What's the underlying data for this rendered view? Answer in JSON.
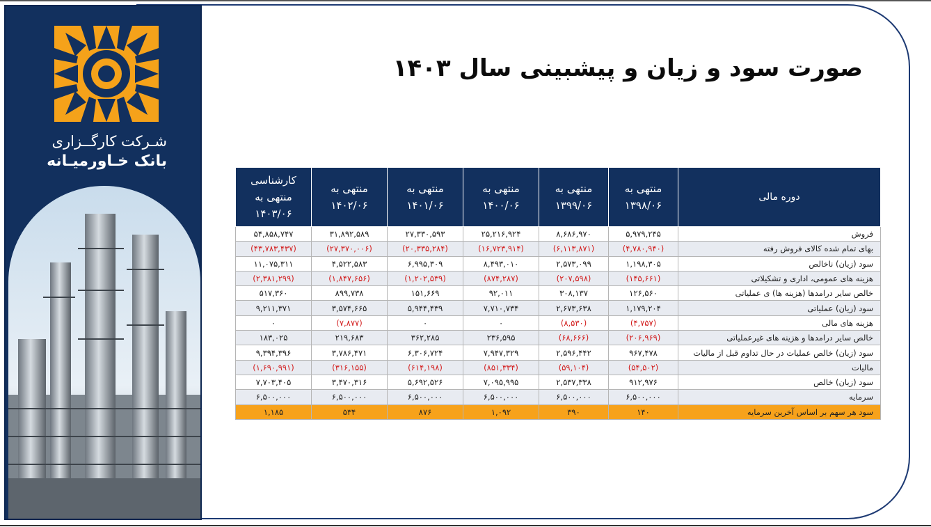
{
  "title": "صورت سود و زیان و پیشبینی سال ۱۴۰۳",
  "company": {
    "line1": "شـرکت کارگــزاری",
    "line2": "بانک خـاورمیـانه"
  },
  "table": {
    "label_header": "دوره مالی",
    "columns": [
      {
        "l1": "منتهی به",
        "l2": "۱۳۹۸/۰۶"
      },
      {
        "l1": "منتهی به",
        "l2": "۱۳۹۹/۰۶"
      },
      {
        "l1": "منتهی به",
        "l2": "۱۴۰۰/۰۶"
      },
      {
        "l1": "منتهی به",
        "l2": "۱۴۰۱/۰۶"
      },
      {
        "l1": "منتهی به",
        "l2": "۱۴۰۲/۰۶"
      },
      {
        "l1": "کارشناسی",
        "l2": "منتهی به",
        "l3": "۱۴۰۳/۰۶"
      }
    ],
    "rows": [
      {
        "label": "فروش",
        "values": [
          "۵,۹۷۹,۲۴۵",
          "۸,۶۸۶,۹۷۰",
          "۲۵,۲۱۶,۹۲۴",
          "۲۷,۳۳۰,۵۹۳",
          "۳۱,۸۹۲,۵۸۹",
          "۵۴,۸۵۸,۷۴۷"
        ],
        "neg": [
          false,
          false,
          false,
          false,
          false,
          false
        ]
      },
      {
        "label": "بهای تمام شده کالای فروش رفته",
        "values": [
          "(۴,۷۸۰,۹۴۰)",
          "(۶,۱۱۳,۸۷۱)",
          "(۱۶,۷۲۳,۹۱۴)",
          "(۲۰,۳۳۵,۲۸۴)",
          "(۲۷,۳۷۰,۰۰۶)",
          "(۴۳,۷۸۳,۴۳۷)"
        ],
        "neg": [
          true,
          true,
          true,
          true,
          true,
          true
        ]
      },
      {
        "label": "سود (زیان) ناخالص",
        "values": [
          "۱,۱۹۸,۳۰۵",
          "۲,۵۷۳,۰۹۹",
          "۸,۴۹۳,۰۱۰",
          "۶,۹۹۵,۳۰۹",
          "۴,۵۲۲,۵۸۳",
          "۱۱,۰۷۵,۳۱۱"
        ],
        "neg": [
          false,
          false,
          false,
          false,
          false,
          false
        ]
      },
      {
        "label": "هزینه های عمومی، اداری و تشکیلاتی",
        "values": [
          "(۱۴۵,۶۶۱)",
          "(۲۰۷,۵۹۸)",
          "(۸۷۴,۲۸۷)",
          "(۱,۲۰۲,۵۳۹)",
          "(۱,۸۴۷,۶۵۶)",
          "(۲,۳۸۱,۲۹۹)"
        ],
        "neg": [
          true,
          true,
          true,
          true,
          true,
          true
        ]
      },
      {
        "label": "خالص سایر درامدها (هزینه ها) ی عملیاتی",
        "values": [
          "۱۲۶,۵۶۰",
          "۳۰۸,۱۳۷",
          "۹۲,۰۱۱",
          "۱۵۱,۶۶۹",
          "۸۹۹,۷۳۸",
          "۵۱۷,۳۶۰"
        ],
        "neg": [
          false,
          false,
          false,
          false,
          false,
          false
        ]
      },
      {
        "label": "سود (زیان) عملیاتی",
        "values": [
          "۱,۱۷۹,۲۰۴",
          "۲,۶۷۳,۶۳۸",
          "۷,۷۱۰,۷۳۴",
          "۵,۹۴۴,۴۳۹",
          "۳,۵۷۴,۶۶۵",
          "۹,۲۱۱,۳۷۱"
        ],
        "neg": [
          false,
          false,
          false,
          false,
          false,
          false
        ]
      },
      {
        "label": "هزینه های مالی",
        "values": [
          "(۴,۷۵۷)",
          "(۸,۵۳۰)",
          "۰",
          "۰",
          "(۷,۸۷۷)",
          "۰"
        ],
        "neg": [
          true,
          true,
          false,
          false,
          true,
          false
        ]
      },
      {
        "label": "خالص سایر درامدها و هزینه های غیرعملیاتی",
        "values": [
          "(۲۰۶,۹۶۹)",
          "(۶۸,۶۶۶)",
          "۲۳۶,۵۹۵",
          "۳۶۲,۲۸۵",
          "۲۱۹,۶۸۳",
          "۱۸۳,۰۲۵"
        ],
        "neg": [
          true,
          true,
          false,
          false,
          false,
          false
        ]
      },
      {
        "label": "سود (زیان) خالص عملیات در حال تداوم قبل از مالیات",
        "values": [
          "۹۶۷,۴۷۸",
          "۲,۵۹۶,۴۴۲",
          "۷,۹۴۷,۳۲۹",
          "۶,۳۰۶,۷۲۴",
          "۳,۷۸۶,۴۷۱",
          "۹,۳۹۴,۳۹۶"
        ],
        "neg": [
          false,
          false,
          false,
          false,
          false,
          false
        ]
      },
      {
        "label": "مالیات",
        "values": [
          "(۵۴,۵۰۲)",
          "(۵۹,۱۰۴)",
          "(۸۵۱,۳۳۴)",
          "(۶۱۴,۱۹۸)",
          "(۳۱۶,۱۵۵)",
          "(۱,۶۹۰,۹۹۱)"
        ],
        "neg": [
          true,
          true,
          true,
          true,
          true,
          true
        ]
      },
      {
        "label": "سود (زیان) خالص",
        "values": [
          "۹۱۲,۹۷۶",
          "۲,۵۳۷,۳۳۸",
          "۷,۰۹۵,۹۹۵",
          "۵,۶۹۲,۵۲۶",
          "۳,۴۷۰,۳۱۶",
          "۷,۷۰۳,۴۰۵"
        ],
        "neg": [
          false,
          false,
          false,
          false,
          false,
          false
        ]
      },
      {
        "label": "سرمایه",
        "values": [
          "۶,۵۰۰,۰۰۰",
          "۶,۵۰۰,۰۰۰",
          "۶,۵۰۰,۰۰۰",
          "۶,۵۰۰,۰۰۰",
          "۶,۵۰۰,۰۰۰",
          "۶,۵۰۰,۰۰۰"
        ],
        "neg": [
          false,
          false,
          false,
          false,
          false,
          false
        ]
      },
      {
        "label": "سود هر سهم بر اساس آخرین سرمایه",
        "values": [
          "۱۴۰",
          "۳۹۰",
          "۱,۰۹۲",
          "۸۷۶",
          "۵۳۴",
          "۱,۱۸۵"
        ],
        "neg": [
          false,
          false,
          false,
          false,
          false,
          false
        ]
      }
    ]
  },
  "colors": {
    "navy": "#12305e",
    "negative": "#d21b1b",
    "highlight": "#f7a21b",
    "logo": "#f5a21a"
  },
  "icons": [
    "sun-logo-icon",
    "refinery-photo"
  ]
}
